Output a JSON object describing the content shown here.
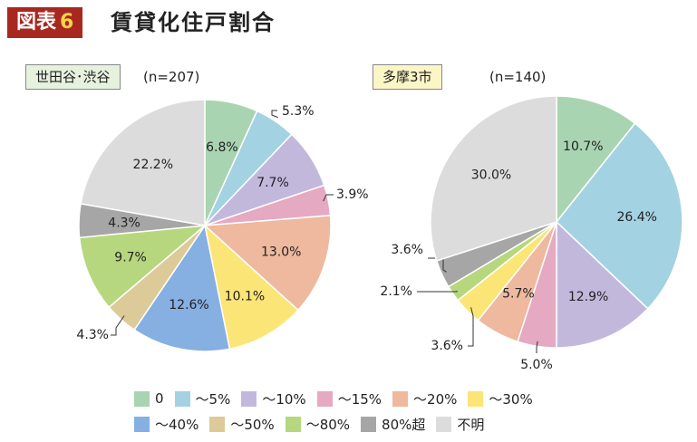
{
  "header": {
    "badge": "図表",
    "badge_num": "6",
    "title": "賃貸化住戸割合"
  },
  "chart_data": [
    {
      "type": "pie",
      "title": "世田谷･渋谷",
      "n_label": "(n=207)",
      "categories": [
        "0",
        "～5%",
        "～10%",
        "～15%",
        "～20%",
        "～30%",
        "～40%",
        "～50%",
        "～80%",
        "80%超",
        "不明"
      ],
      "values": [
        6.8,
        5.3,
        7.7,
        3.9,
        13.0,
        10.1,
        12.6,
        4.3,
        9.7,
        4.3,
        22.2
      ],
      "labels": [
        "6.8%",
        "5.3%",
        "7.7%",
        "3.9%",
        "13.0%",
        "10.1%",
        "12.6%",
        "4.3%",
        "9.7%",
        "4.3%",
        "22.2%"
      ]
    },
    {
      "type": "pie",
      "title": "多摩3市",
      "n_label": "(n=140)",
      "categories": [
        "0",
        "～5%",
        "～10%",
        "～15%",
        "～20%",
        "～30%",
        "～40%",
        "～50%",
        "～80%",
        "80%超",
        "不明"
      ],
      "values": [
        10.7,
        26.4,
        12.9,
        5.0,
        5.7,
        3.6,
        0,
        0,
        2.1,
        3.6,
        30.0
      ],
      "labels": [
        "10.7%",
        "26.4%",
        "12.9%",
        "5.0%",
        "5.7%",
        "3.6%",
        "",
        "",
        "2.1%",
        "3.6%",
        "30.0%"
      ]
    }
  ],
  "legend": {
    "items": [
      {
        "label": "0",
        "color": "#a9d4b1"
      },
      {
        "label": "～5%",
        "color": "#a3d2e2"
      },
      {
        "label": "～10%",
        "color": "#c2b8dc"
      },
      {
        "label": "～15%",
        "color": "#e6a9c2"
      },
      {
        "label": "～20%",
        "color": "#eeb99e"
      },
      {
        "label": "～30%",
        "color": "#fbe577"
      },
      {
        "label": "～40%",
        "color": "#86afe2"
      },
      {
        "label": "～50%",
        "color": "#dccb99"
      },
      {
        "label": "～80%",
        "color": "#b6d77e"
      },
      {
        "label": "80%超",
        "color": "#a6a6a6"
      },
      {
        "label": "不明",
        "color": "#dcdcdc"
      }
    ]
  }
}
